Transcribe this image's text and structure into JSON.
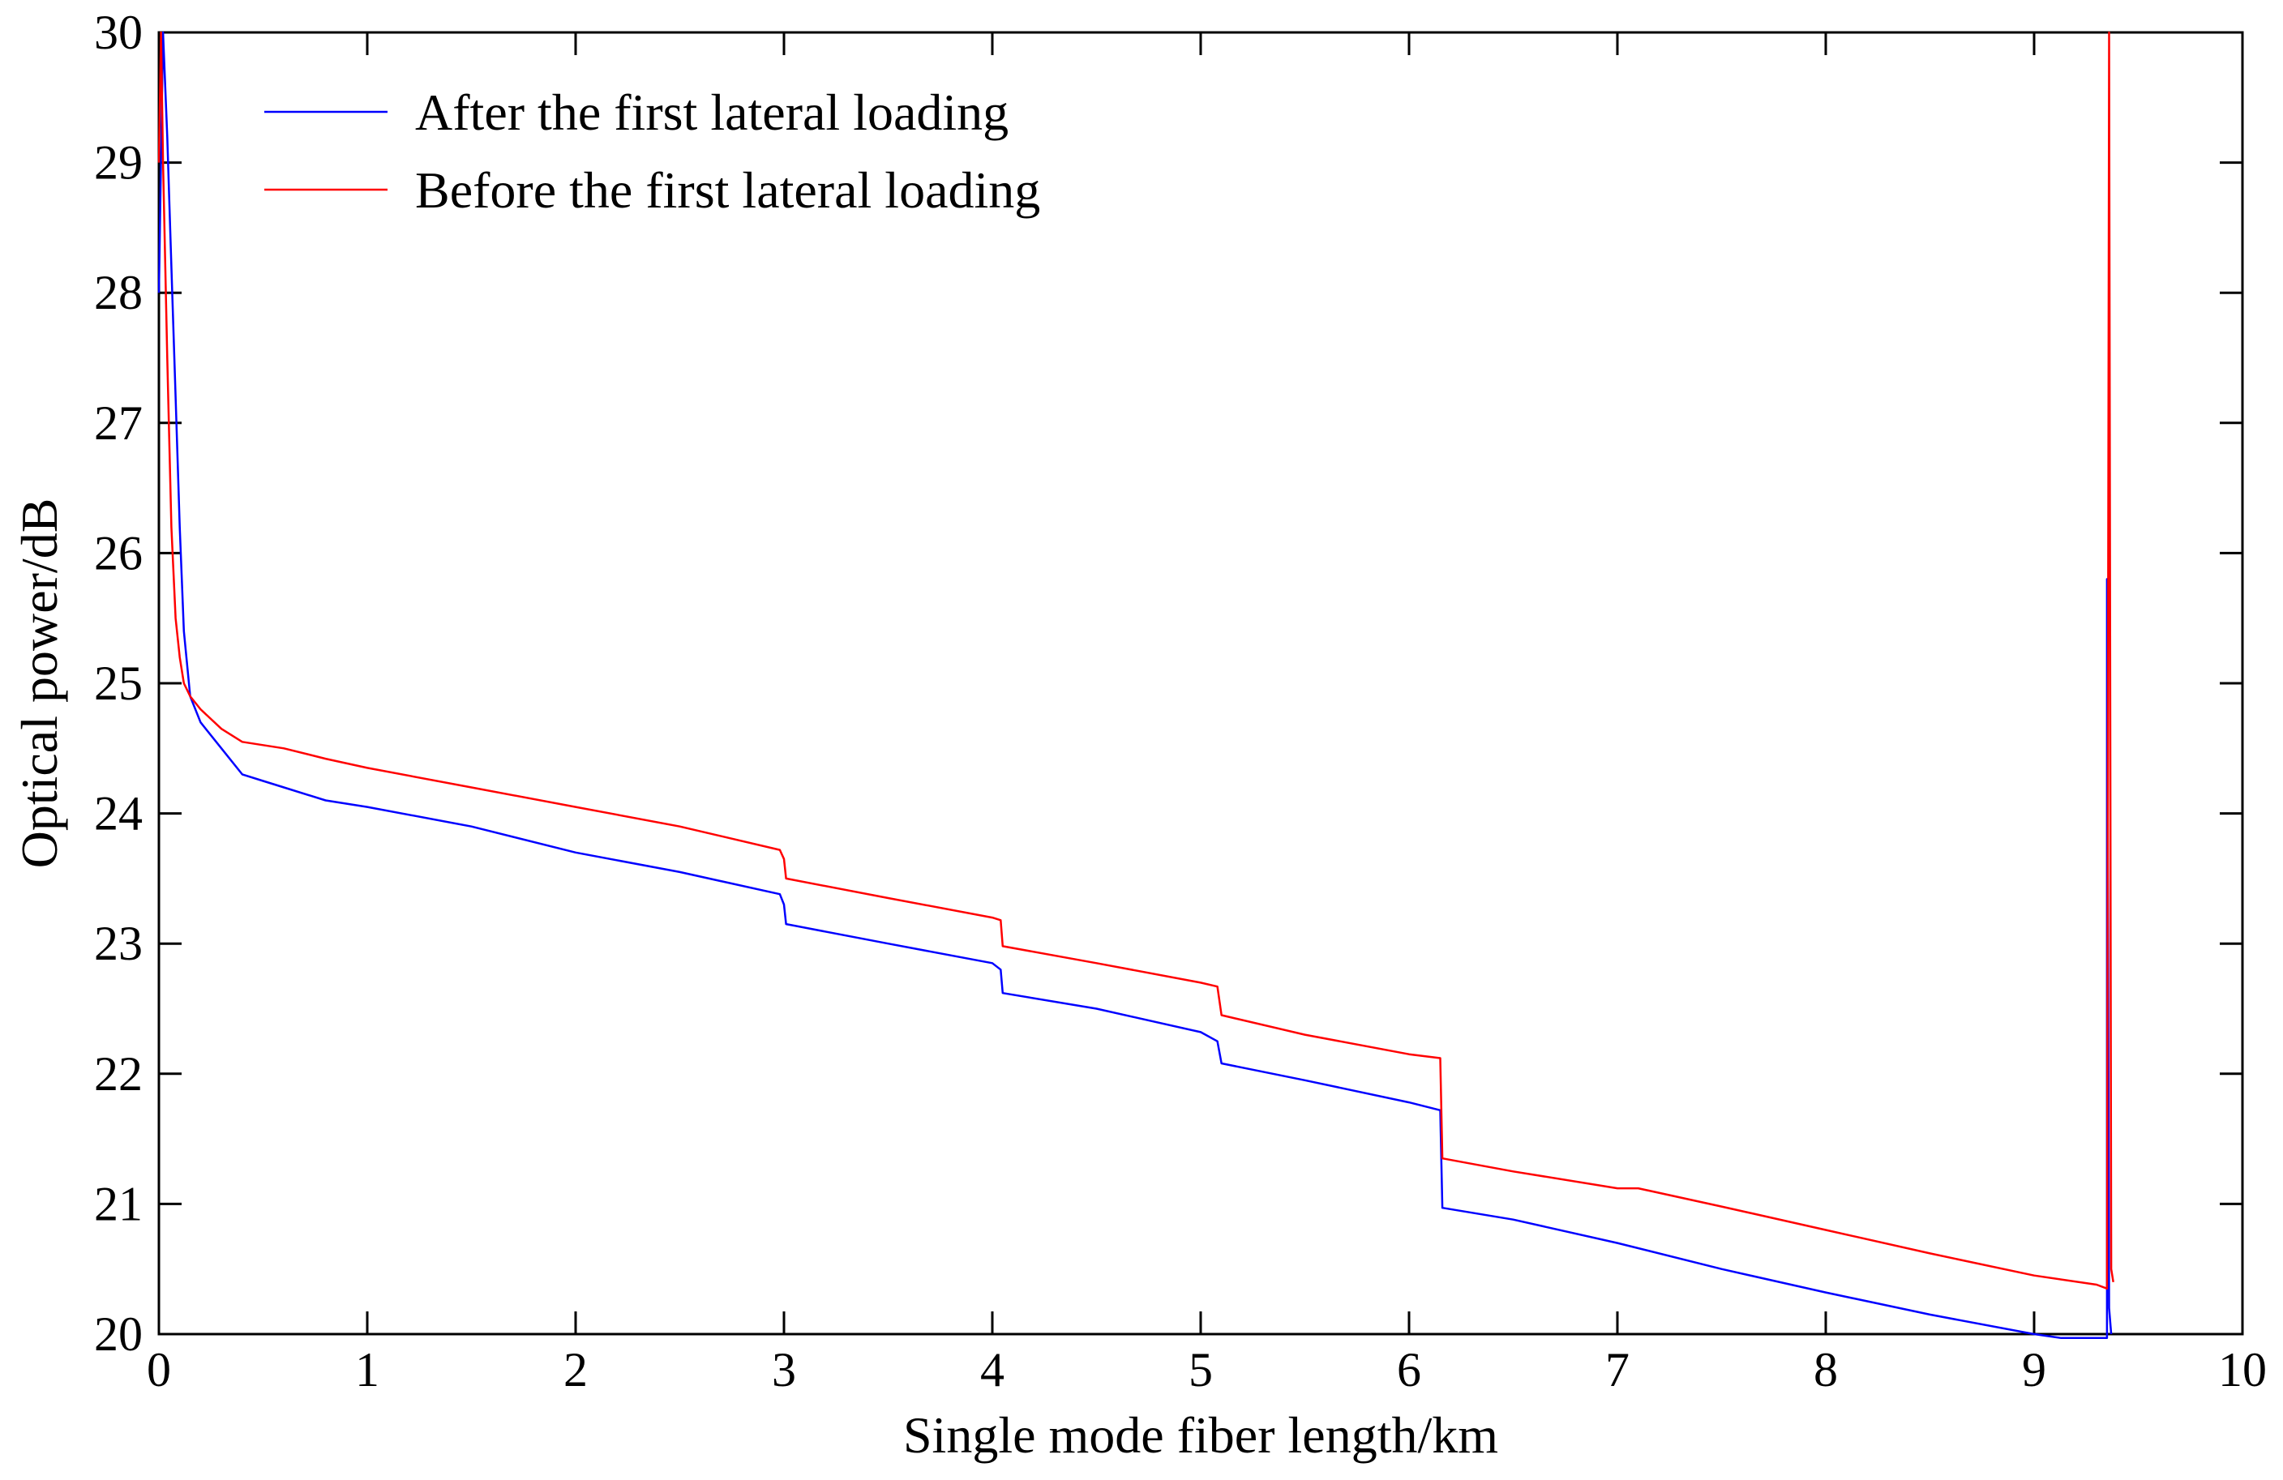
{
  "chart_data": {
    "type": "line",
    "title": "",
    "xlabel": "Single mode fiber length/km",
    "ylabel": "Optical power/dB",
    "xlim": [
      0,
      10
    ],
    "ylim": [
      20,
      30
    ],
    "xticks": [
      "0",
      "1",
      "2",
      "3",
      "4",
      "5",
      "6",
      "7",
      "8",
      "9",
      "10"
    ],
    "yticks": [
      "20",
      "21",
      "22",
      "23",
      "24",
      "25",
      "26",
      "27",
      "28",
      "29",
      "30"
    ],
    "legend_position": "top-left",
    "grid": false,
    "series": [
      {
        "name": "After the first lateral loading",
        "color": "#0000ff",
        "x": [
          0,
          0.02,
          0.04,
          0.06,
          0.08,
          0.1,
          0.12,
          0.15,
          0.2,
          0.3,
          0.4,
          0.5,
          0.6,
          0.8,
          1.0,
          1.5,
          2.0,
          2.5,
          2.98,
          3.0,
          3.01,
          3.5,
          4.0,
          4.04,
          4.05,
          4.5,
          5.0,
          5.08,
          5.1,
          5.5,
          6.0,
          6.15,
          6.16,
          6.5,
          7.0,
          7.5,
          8.0,
          8.5,
          9.0,
          9.13,
          9.35,
          9.35,
          9.36,
          9.37
        ],
        "y": [
          28.0,
          30.0,
          29.2,
          28.2,
          27.2,
          26.2,
          25.4,
          24.9,
          24.7,
          24.5,
          24.3,
          24.25,
          24.2,
          24.1,
          24.05,
          23.9,
          23.7,
          23.55,
          23.38,
          23.3,
          23.15,
          23.0,
          22.85,
          22.8,
          22.62,
          22.5,
          22.32,
          22.25,
          22.08,
          21.95,
          21.78,
          21.72,
          20.97,
          20.88,
          20.7,
          20.5,
          20.32,
          20.15,
          20.0,
          19.97,
          19.97,
          25.8,
          20.2,
          20.0
        ]
      },
      {
        "name": "Before the first lateral loading",
        "color": "#ff0000",
        "x": [
          0,
          0.01,
          0.02,
          0.04,
          0.06,
          0.08,
          0.1,
          0.12,
          0.15,
          0.2,
          0.3,
          0.4,
          0.6,
          0.8,
          1.0,
          1.5,
          2.0,
          2.5,
          2.98,
          3.0,
          3.01,
          3.5,
          4.0,
          4.04,
          4.05,
          4.5,
          5.0,
          5.08,
          5.1,
          5.5,
          6.0,
          6.15,
          6.16,
          6.5,
          7.0,
          7.1,
          7.5,
          8.0,
          8.5,
          9.0,
          9.3,
          9.35,
          9.36,
          9.37,
          9.38
        ],
        "y": [
          29.0,
          30.0,
          29.0,
          27.5,
          26.2,
          25.5,
          25.2,
          25.0,
          24.9,
          24.8,
          24.65,
          24.55,
          24.5,
          24.42,
          24.35,
          24.2,
          24.05,
          23.9,
          23.72,
          23.65,
          23.5,
          23.35,
          23.2,
          23.18,
          22.98,
          22.85,
          22.7,
          22.67,
          22.45,
          22.3,
          22.15,
          22.12,
          21.35,
          21.25,
          21.12,
          21.12,
          20.98,
          20.8,
          20.62,
          20.45,
          20.38,
          20.35,
          30.0,
          20.5,
          20.4
        ]
      }
    ]
  }
}
